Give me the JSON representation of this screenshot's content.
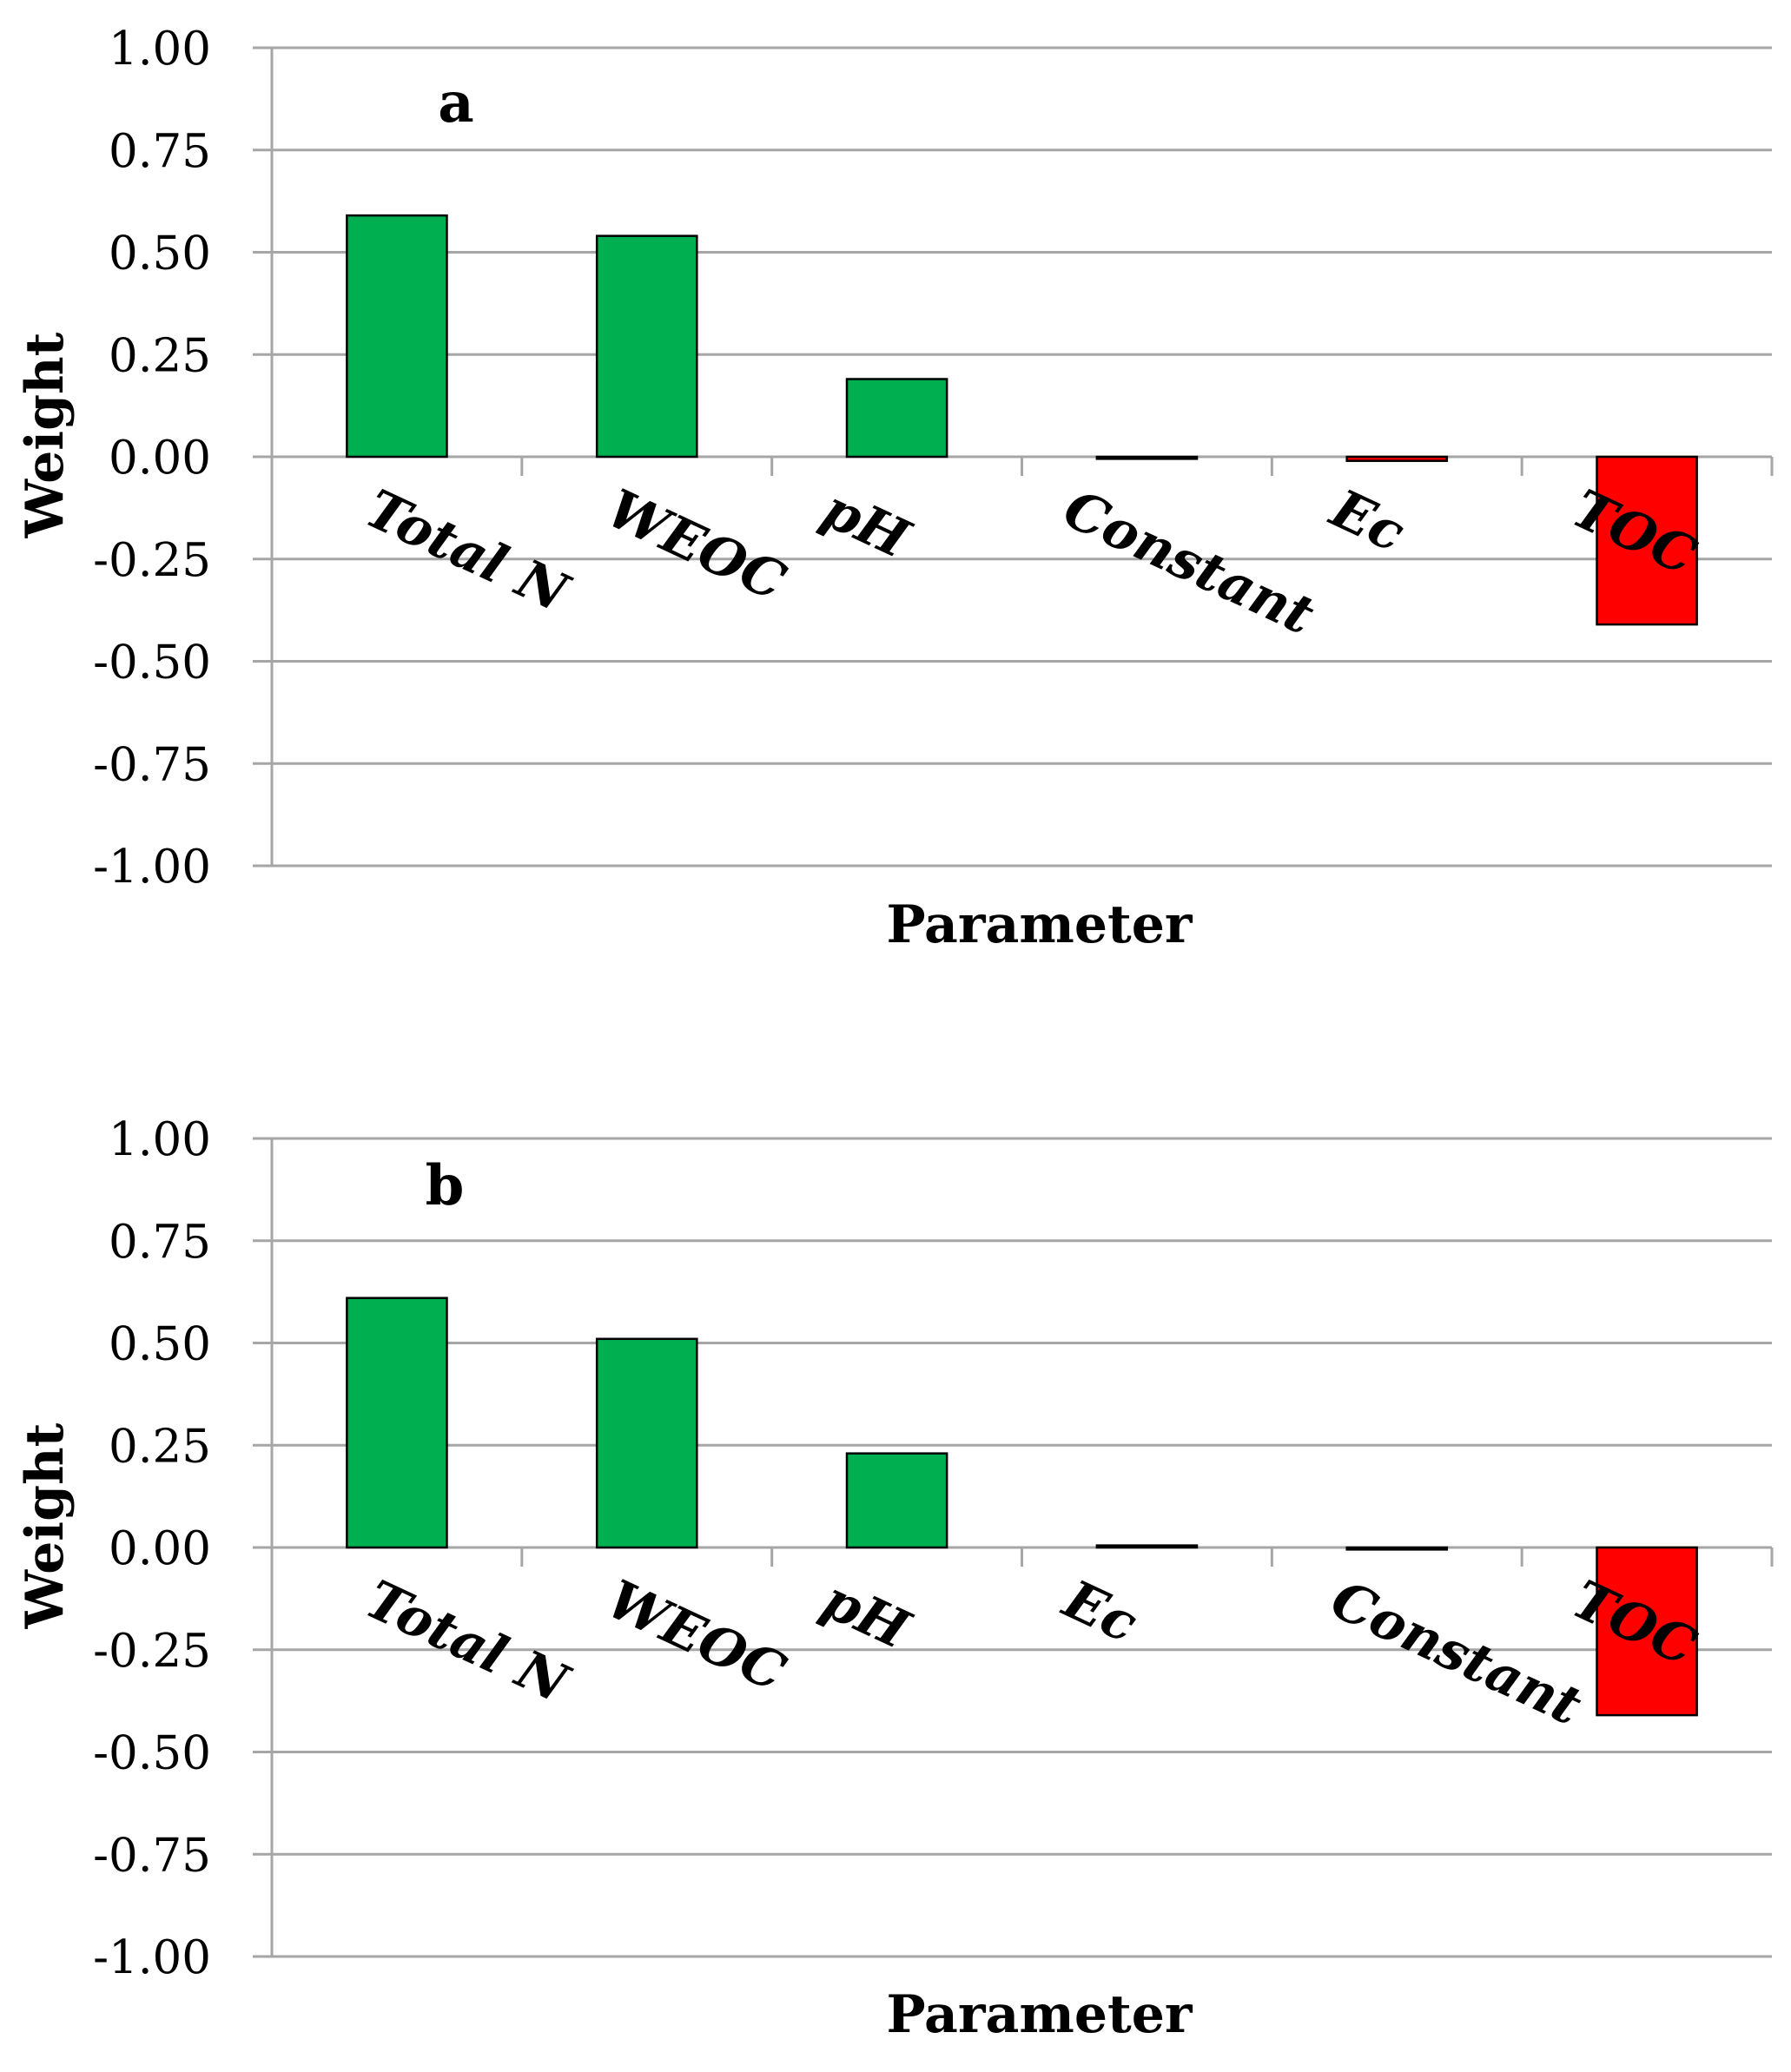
{
  "chart_data": [
    {
      "type": "bar",
      "panel_label": "a",
      "categories": [
        "Total N",
        "WEOC",
        "pH",
        "Constant",
        "Ec",
        "TOC"
      ],
      "values": [
        0.59,
        0.54,
        0.19,
        -0.005,
        -0.01,
        -0.41
      ],
      "colors": [
        "#00b050",
        "#00b050",
        "#00b050",
        "#00b050",
        "#ff0000",
        "#ff0000"
      ],
      "xlabel": "Parameter",
      "ylabel": "Weight",
      "ylim": [
        -1.0,
        1.0
      ],
      "yticks": [
        "1.00",
        "0.75",
        "0.50",
        "0.25",
        "0.00",
        "-0.25",
        "-0.50",
        "-0.75",
        "-1.00"
      ],
      "grid": true
    },
    {
      "type": "bar",
      "panel_label": "b",
      "categories": [
        "Total N",
        "WEOC",
        "pH",
        "Ec",
        "Constant",
        "TOC"
      ],
      "values": [
        0.61,
        0.51,
        0.23,
        0.005,
        -0.005,
        -0.41
      ],
      "colors": [
        "#00b050",
        "#00b050",
        "#00b050",
        "#00b050",
        "#ff0000",
        "#ff0000"
      ],
      "xlabel": "Parameter",
      "ylabel": "Weight",
      "ylim": [
        -1.0,
        1.0
      ],
      "yticks": [
        "1.00",
        "0.75",
        "0.50",
        "0.25",
        "0.00",
        "-0.25",
        "-0.50",
        "-0.75",
        "-1.00"
      ],
      "grid": true
    }
  ]
}
